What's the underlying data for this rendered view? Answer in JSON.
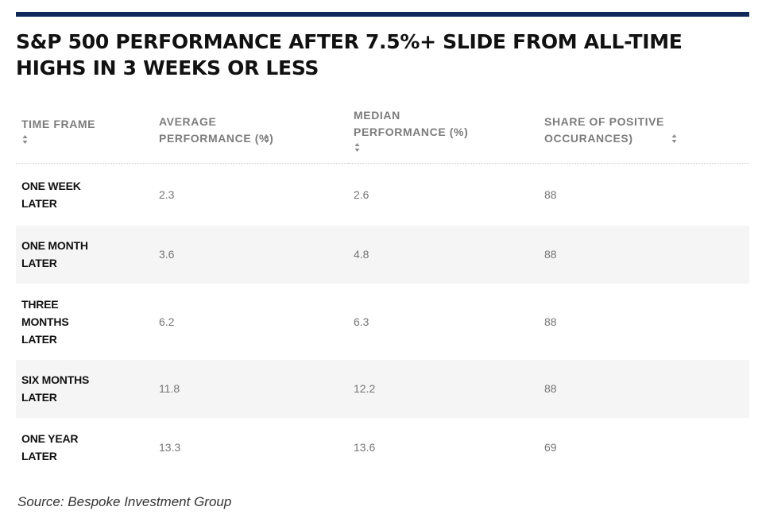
{
  "title": "S&P 500 PERFORMANCE AFTER 7.5%+ SLIDE FROM ALL-TIME HIGHS IN 3 WEEKS OR LESS",
  "source": "Source: Bespoke Investment Group",
  "colors": {
    "rule": "#11295a",
    "header_text": "#7c7c7c",
    "value_text": "#757575",
    "row_band": "#f5f5f5"
  },
  "chart_data": {
    "type": "table",
    "title": "S&P 500 PERFORMANCE AFTER 7.5%+ SLIDE FROM ALL-TIME HIGHS IN 3 WEEKS OR LESS",
    "columns": [
      {
        "label": "TIME FRAME",
        "sortable": true
      },
      {
        "label": "AVERAGE PERFORMANCE (%)",
        "sortable": true
      },
      {
        "label": "MEDIAN PERFORMANCE (%)",
        "sortable": true
      },
      {
        "label": "SHARE OF POSITIVE OCCURANCES)",
        "sortable": true
      }
    ],
    "rows": [
      {
        "time_frame": "ONE WEEK LATER",
        "average": "2.3",
        "median": "2.6",
        "share_positive": "88"
      },
      {
        "time_frame": "ONE MONTH LATER",
        "average": "3.6",
        "median": "4.8",
        "share_positive": "88"
      },
      {
        "time_frame": "THREE MONTHS LATER",
        "average": "6.2",
        "median": "6.3",
        "share_positive": "88"
      },
      {
        "time_frame": "SIX MONTHS LATER",
        "average": "11.8",
        "median": "12.2",
        "share_positive": "88"
      },
      {
        "time_frame": "ONE YEAR LATER",
        "average": "13.3",
        "median": "13.6",
        "share_positive": "69"
      }
    ],
    "source": "Source: Bespoke Investment Group"
  }
}
